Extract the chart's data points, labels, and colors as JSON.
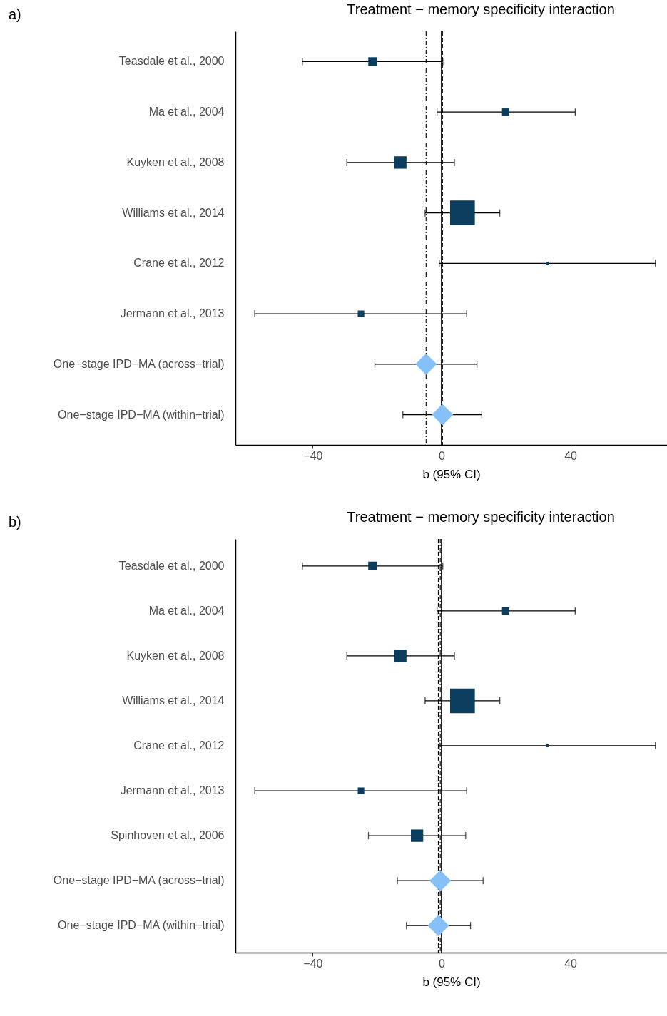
{
  "chart_data": [
    {
      "type": "scatter",
      "title": "Treatment − memory specificity interaction",
      "xlabel": "b (95% CI)",
      "orientation": "horizontal",
      "annotations": [
        "a)"
      ],
      "categories": [
        "Teasdale et al., 2000",
        "Ma et al., 2004",
        "Kuyken et al., 2008",
        "Williams et al., 2014",
        "Crane et al., 2012",
        "Jermann et al., 2013",
        "One−stage IPD−MA (across−trial)",
        "One−stage IPD−MA (within−trial)"
      ],
      "xlim": [
        -64,
        70
      ],
      "xticks": [
        -40,
        0,
        40
      ],
      "grid": false,
      "legend": false,
      "series": [
        {
          "type": "bubble",
          "marker": "square",
          "color": "#0b3d5e",
          "values": [
            -21.4,
            19.9,
            -12.8,
            6.5,
            32.8,
            -25.0,
            null,
            null
          ],
          "sizes": [
            0.125,
            0.087,
            0.25,
            1,
            0.014,
            0.07,
            null,
            null
          ],
          "errors": [
            [
              -43.2,
              0.4
            ],
            [
              -1.4,
              41.5
            ],
            [
              -29.4,
              4.0
            ],
            [
              -5.1,
              18.1
            ],
            [
              -0.7,
              66.4
            ],
            [
              -58.0,
              7.8
            ],
            null,
            null
          ]
        },
        {
          "marker": "diamond",
          "color": "#85c0f9",
          "values": [
            null,
            null,
            null,
            null,
            null,
            null,
            -4.8,
            0.3
          ],
          "errors": [
            null,
            null,
            null,
            null,
            null,
            null,
            [
              -20.7,
              11.0
            ],
            [
              -12.0,
              12.5
            ]
          ]
        }
      ],
      "ref_lines": [
        {
          "axis": "x",
          "value": 0,
          "line_style": "solid"
        },
        {
          "axis": "x",
          "value": -4.8,
          "line_style": "dashdot"
        },
        {
          "axis": "x",
          "value": 0.3,
          "line_style": "dashed"
        }
      ]
    },
    {
      "type": "scatter",
      "title": "Treatment − memory specificity interaction",
      "xlabel": "b (95% CI)",
      "orientation": "horizontal",
      "annotations": [
        "b)"
      ],
      "categories": [
        "Teasdale et al., 2000",
        "Ma et al., 2004",
        "Kuyken et al., 2008",
        "Williams et al., 2014",
        "Crane et al., 2012",
        "Jermann et al., 2013",
        "Spinhoven et al., 2006",
        "One−stage IPD−MA (across−trial)",
        "One−stage IPD−MA (within−trial)"
      ],
      "xlim": [
        -64,
        70
      ],
      "xticks": [
        -40,
        0,
        40
      ],
      "grid": false,
      "legend": false,
      "series": [
        {
          "type": "bubble",
          "marker": "square",
          "color": "#0b3d5e",
          "values": [
            -21.4,
            19.9,
            -12.8,
            6.5,
            32.8,
            -25.0,
            -7.6,
            null,
            null
          ],
          "sizes": [
            0.125,
            0.087,
            0.25,
            1,
            0.014,
            0.07,
            0.25,
            null,
            null
          ],
          "errors": [
            [
              -43.2,
              0.4
            ],
            [
              -1.4,
              41.5
            ],
            [
              -29.4,
              4.0
            ],
            [
              -5.1,
              18.1
            ],
            [
              -0.7,
              66.4
            ],
            [
              -58.0,
              7.8
            ],
            [
              -22.7,
              7.5
            ],
            null,
            null
          ]
        },
        {
          "marker": "diamond",
          "color": "#85c0f9",
          "values": [
            null,
            null,
            null,
            null,
            null,
            null,
            null,
            -0.4,
            -1.0
          ],
          "errors": [
            null,
            null,
            null,
            null,
            null,
            null,
            null,
            [
              -13.7,
              12.9
            ],
            [
              -10.9,
              9.0
            ]
          ]
        }
      ],
      "ref_lines": [
        {
          "axis": "x",
          "value": 0,
          "line_style": "solid"
        },
        {
          "axis": "x",
          "value": -0.4,
          "line_style": "dashdot"
        },
        {
          "axis": "x",
          "value": -1.0,
          "line_style": "dashed"
        }
      ]
    }
  ]
}
